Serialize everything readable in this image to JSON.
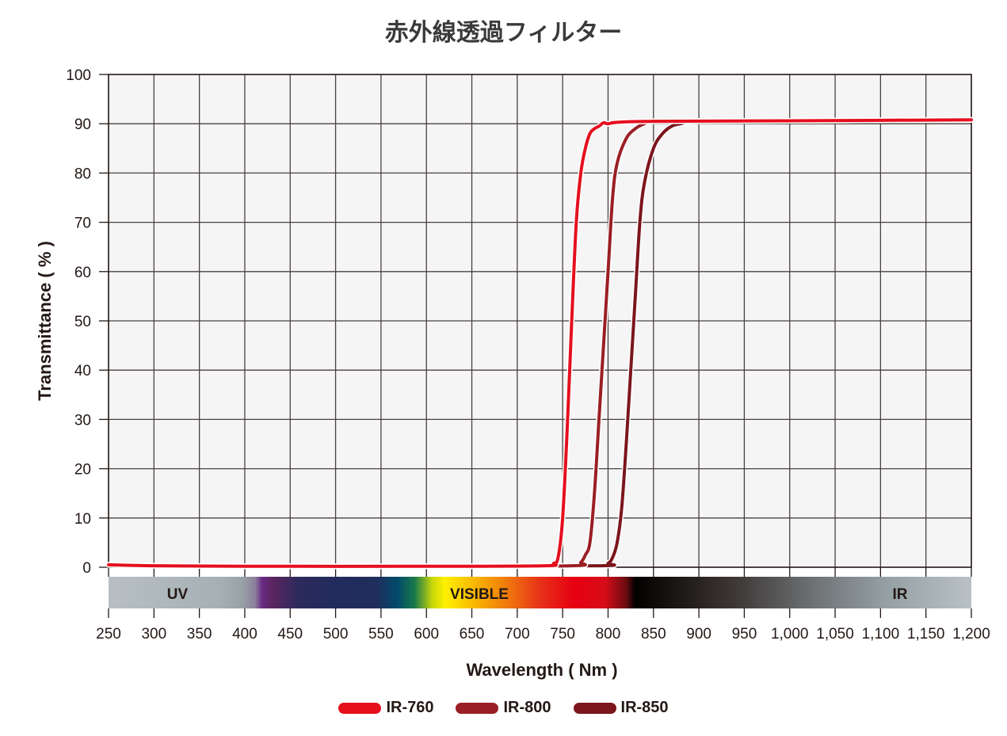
{
  "title": "赤外線透過フィルター",
  "colors": {
    "ir760": "#e50f1e",
    "ir800": "#9a1f24",
    "ir850": "#7b161c",
    "grid": "#4a4040",
    "plot_bg": "#f5f5f5"
  },
  "legend": [
    {
      "label": "IR-760",
      "color": "#e50f1e"
    },
    {
      "label": "IR-800",
      "color": "#9a1f24"
    },
    {
      "label": "IR-850",
      "color": "#7b161c"
    }
  ],
  "spectrum_labels": {
    "uv": "UV",
    "visible": "VISIBLE",
    "ir": "IR"
  },
  "chart_data": {
    "type": "line",
    "title": "赤外線透過フィルター",
    "xlabel": "Wavelength ( Nm )",
    "ylabel": "Transmittance ( % )",
    "xlim": [
      250,
      1200
    ],
    "ylim": [
      0,
      100
    ],
    "x_ticks": [
      250,
      300,
      350,
      400,
      450,
      500,
      550,
      600,
      650,
      700,
      750,
      800,
      850,
      900,
      950,
      1000,
      1050,
      1100,
      1150,
      1200
    ],
    "x_tick_labels": [
      "250",
      "300",
      "350",
      "400",
      "450",
      "500",
      "550",
      "600",
      "650",
      "700",
      "750",
      "800",
      "850",
      "900",
      "950",
      "1,000",
      "1,050",
      "1,100",
      "1,150",
      "1,200"
    ],
    "y_ticks": [
      0,
      10,
      20,
      30,
      40,
      50,
      60,
      70,
      80,
      90,
      100
    ],
    "grid": true,
    "legend_position": "bottom",
    "series": [
      {
        "name": "IR-760",
        "x": [
          250,
          300,
          400,
          600,
          730,
          740,
          745,
          750,
          755,
          760,
          765,
          770,
          775,
          780,
          785,
          790,
          795,
          800,
          810,
          850,
          1000,
          1200
        ],
        "y": [
          0.5,
          0.3,
          0.2,
          0.2,
          0.3,
          0.8,
          2,
          10,
          28,
          50,
          70,
          80,
          85,
          88,
          89,
          89.5,
          90.2,
          90,
          90.3,
          90.5,
          90.6,
          90.8
        ]
      },
      {
        "name": "IR-800",
        "x": [
          250,
          300,
          400,
          600,
          760,
          770,
          775,
          780,
          785,
          790,
          795,
          800,
          805,
          810,
          820,
          830,
          840,
          850,
          900,
          1000,
          1200
        ],
        "y": [
          0.5,
          0.3,
          0.2,
          0.2,
          0.3,
          1,
          2.5,
          5,
          15,
          30,
          45,
          60,
          75,
          82,
          87,
          89,
          90,
          90.5,
          90.6,
          90.6,
          90.8
        ]
      },
      {
        "name": "IR-850",
        "x": [
          250,
          300,
          400,
          600,
          790,
          800,
          805,
          810,
          815,
          820,
          825,
          830,
          835,
          840,
          850,
          860,
          870,
          880,
          900,
          1000,
          1200
        ],
        "y": [
          0.5,
          0.3,
          0.2,
          0.2,
          0.3,
          0.8,
          2,
          5,
          12,
          25,
          40,
          55,
          70,
          78,
          85,
          88,
          89.5,
          90,
          90.5,
          90.6,
          90.8
        ]
      }
    ]
  }
}
